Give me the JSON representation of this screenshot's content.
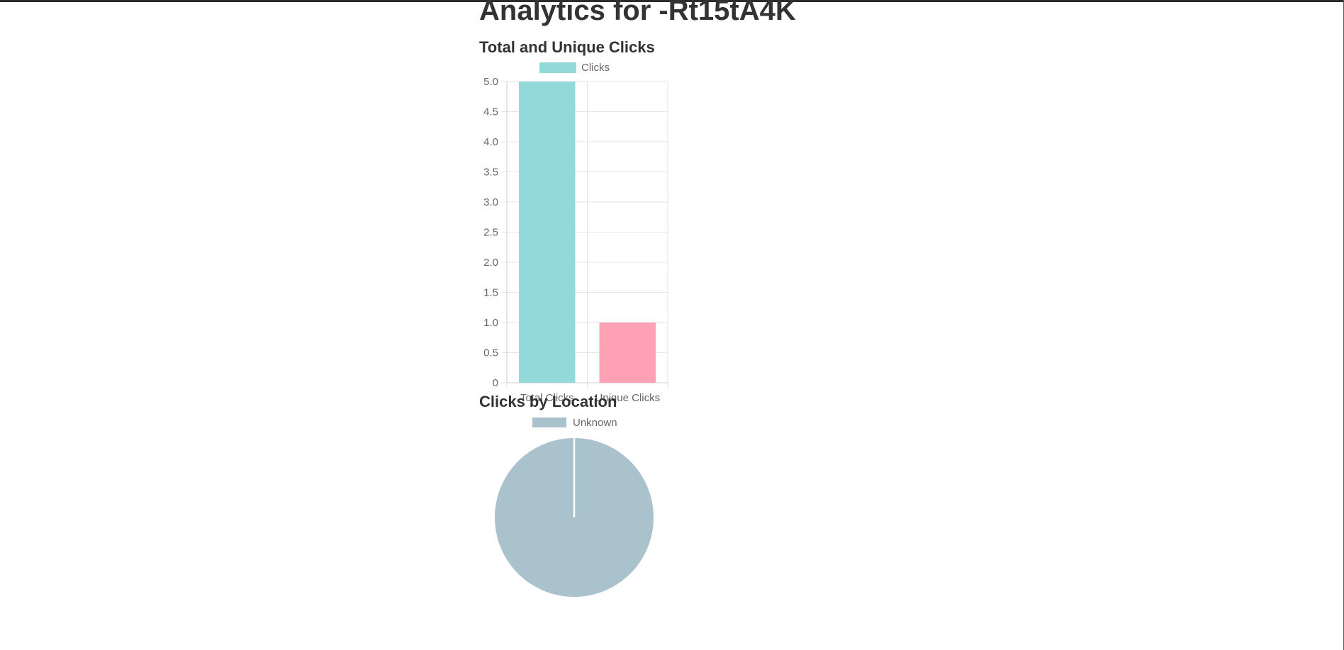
{
  "page": {
    "title": "Analytics for -Rt15tA4K"
  },
  "charts": {
    "bar_title": "Total and Unique Clicks",
    "pie_title": "Clicks by Location"
  },
  "chart_data": [
    {
      "type": "bar",
      "title": "Total and Unique Clicks",
      "categories": [
        "Total Clicks",
        "Unique Clicks"
      ],
      "series": [
        {
          "name": "Clicks",
          "values": [
            5,
            1
          ]
        }
      ],
      "bar_colors": [
        "#93d9d9",
        "#ffa1b5"
      ],
      "legend_color": "#93d9d9",
      "yticks": [
        "0",
        "0.5",
        "1.0",
        "1.5",
        "2.0",
        "2.5",
        "3.0",
        "3.5",
        "4.0",
        "4.5",
        "5.0"
      ],
      "ylim": [
        0,
        5
      ],
      "grid": true,
      "legend": "top"
    },
    {
      "type": "pie",
      "title": "Clicks by Location",
      "labels": [
        "Unknown"
      ],
      "values": [
        1
      ],
      "colors": [
        "#a9c2cb"
      ],
      "legend": "top"
    }
  ]
}
